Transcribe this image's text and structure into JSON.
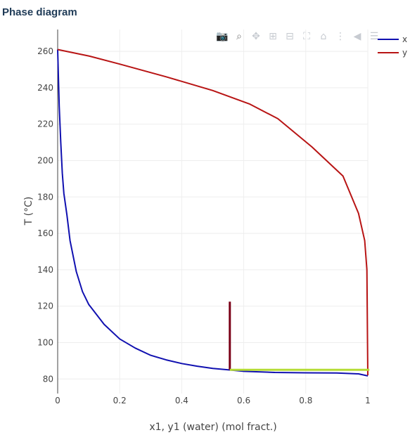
{
  "panel": {
    "title": "Phase diagram"
  },
  "modebar": [
    {
      "name": "camera-icon",
      "glyph": "📷"
    },
    {
      "name": "zoom-icon",
      "glyph": "⌕"
    },
    {
      "name": "pan-icon",
      "glyph": "✥"
    },
    {
      "name": "zoom-in-icon",
      "glyph": "⊞"
    },
    {
      "name": "zoom-out-icon",
      "glyph": "⊟"
    },
    {
      "name": "autoscale-icon",
      "glyph": "⛶"
    },
    {
      "name": "home-icon",
      "glyph": "⌂"
    },
    {
      "name": "spike-lines-icon",
      "glyph": "⋮"
    },
    {
      "name": "hover-closest-icon",
      "glyph": "◀"
    },
    {
      "name": "hover-compare-icon",
      "glyph": "☰"
    }
  ],
  "chart_data": {
    "type": "line",
    "xlabel": "x1, y1 (water) (mol fract.)",
    "ylabel": "T (°C)",
    "xlim": [
      0,
      1
    ],
    "ylim": [
      72,
      272
    ],
    "xticks": [
      "0",
      "0.2",
      "0.4",
      "0.6",
      "0.8",
      "1"
    ],
    "xtick_values": [
      0,
      0.2,
      0.4,
      0.6,
      0.8,
      1
    ],
    "yticks": [
      "80",
      "100",
      "120",
      "140",
      "160",
      "180",
      "200",
      "220",
      "240",
      "260"
    ],
    "ytick_values": [
      80,
      100,
      120,
      140,
      160,
      180,
      200,
      220,
      240,
      260
    ],
    "grid": true,
    "legend_position": "top-right",
    "series": [
      {
        "name": "x",
        "color": "#1010b0",
        "x": [
          0,
          0.005,
          0.01,
          0.015,
          0.02,
          0.03,
          0.04,
          0.06,
          0.08,
          0.1,
          0.15,
          0.2,
          0.25,
          0.3,
          0.35,
          0.4,
          0.45,
          0.5,
          0.55,
          0.6,
          0.7,
          0.8,
          0.9,
          0.97,
          1.0
        ],
        "y": [
          261,
          230,
          210,
          193,
          182,
          170,
          156,
          139,
          128,
          121,
          110,
          102,
          97,
          93,
          90.5,
          88.5,
          87,
          85.8,
          85,
          84.2,
          83.6,
          83.4,
          83.3,
          82.8,
          81.7
        ]
      },
      {
        "name": "y",
        "color": "#b81414",
        "x": [
          0,
          0.1,
          0.2,
          0.35,
          0.5,
          0.62,
          0.71,
          0.82,
          0.92,
          0.97,
          0.99,
          0.997,
          1.0
        ],
        "y": [
          261,
          257.5,
          253,
          246,
          238.5,
          231,
          223,
          207.5,
          191.5,
          171,
          156,
          140,
          82
        ]
      },
      {
        "name": "",
        "color": "#7a0017",
        "x": [
          0.555,
          0.555
        ],
        "y": [
          85,
          122.5
        ]
      },
      {
        "name": "",
        "color": "#b5dc35",
        "x": [
          0.555,
          1.005
        ],
        "y": [
          85,
          85
        ]
      }
    ]
  }
}
